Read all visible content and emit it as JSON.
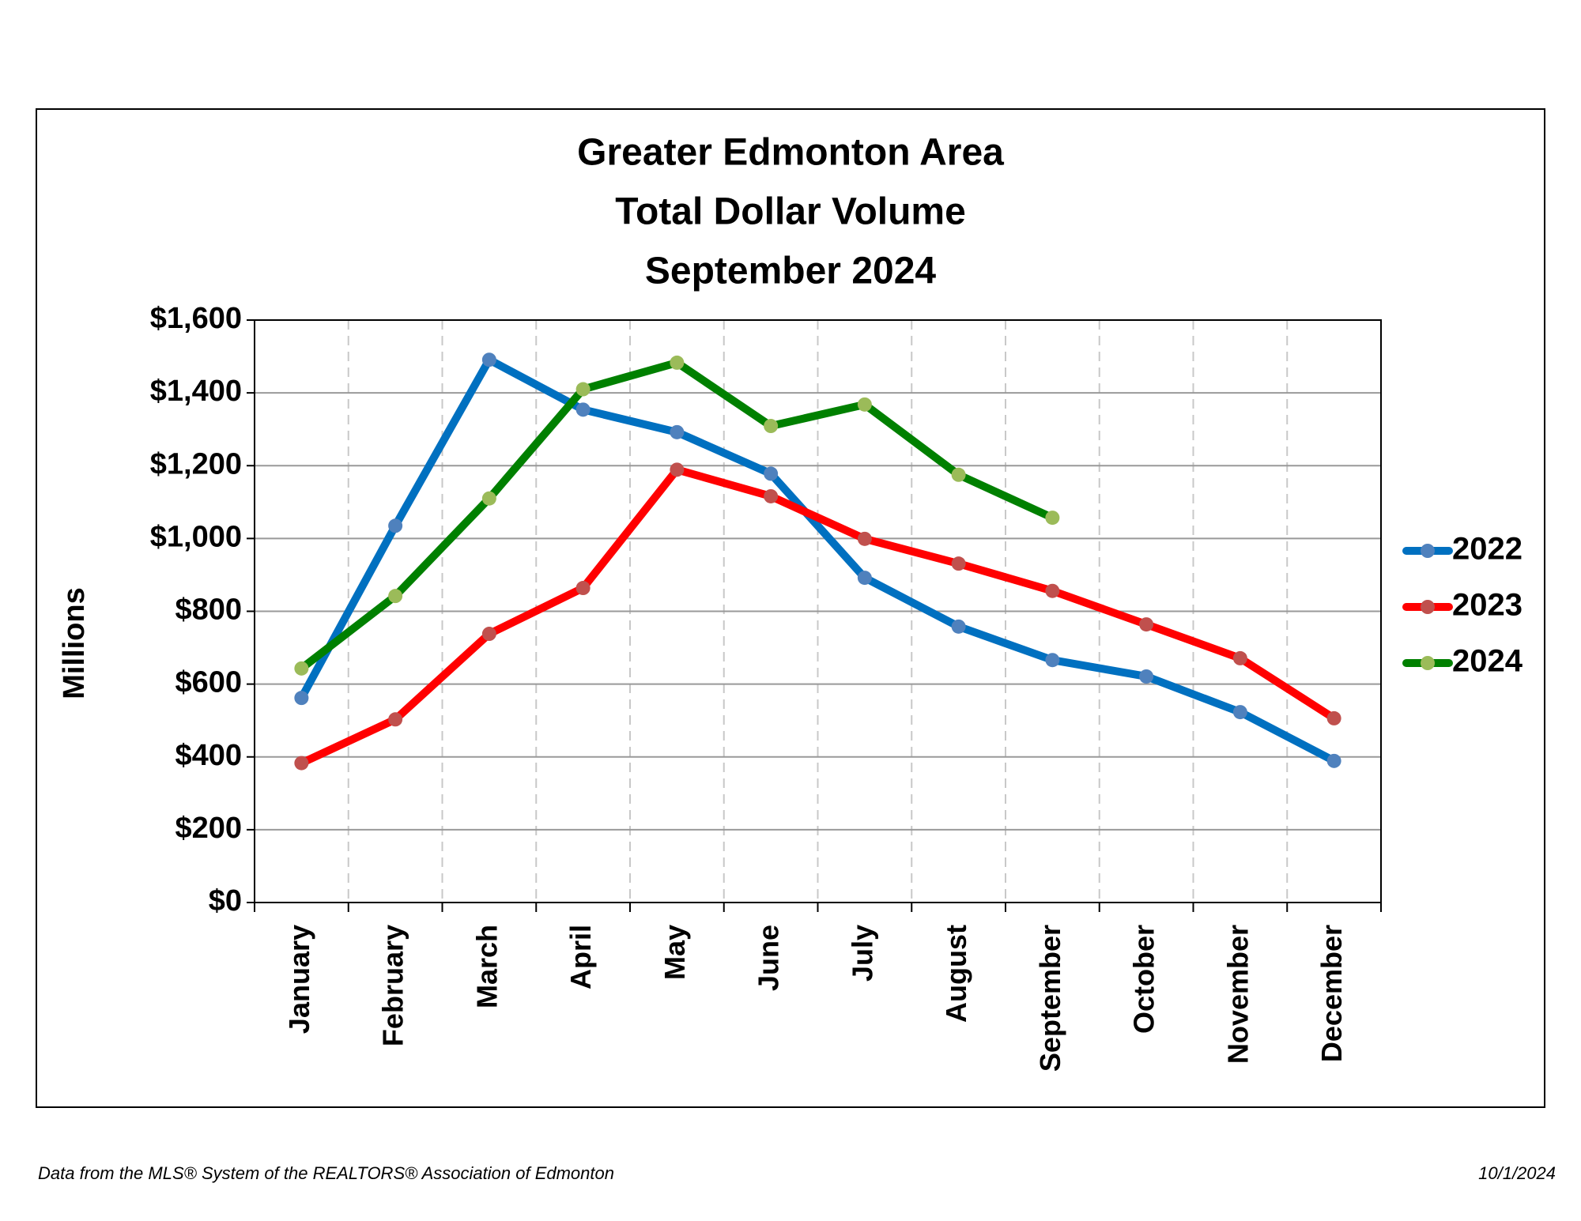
{
  "chart_data": {
    "type": "line",
    "title": [
      "Greater Edmonton Area",
      "Total Dollar Volume",
      "September 2024"
    ],
    "y_label": "Millions",
    "categories": [
      "January",
      "February",
      "March",
      "April",
      "May",
      "June",
      "July",
      "August",
      "September",
      "October",
      "November",
      "December"
    ],
    "series": [
      {
        "name": "2022",
        "color": "#0070c0",
        "marker_color": "#4f81bd",
        "values": [
          562,
          1035,
          1491,
          1354,
          1292,
          1178,
          892,
          758,
          666,
          621,
          523,
          389
        ]
      },
      {
        "name": "2023",
        "color": "#ff0000",
        "marker_color": "#c0504d",
        "values": [
          383,
          503,
          738,
          864,
          1189,
          1116,
          999,
          931,
          856,
          764,
          671,
          506
        ]
      },
      {
        "name": "2024",
        "color": "#008000",
        "marker_color": "#9bbb59",
        "values": [
          643,
          842,
          1110,
          1410,
          1483,
          1309,
          1368,
          1175,
          1057,
          null,
          null,
          null
        ]
      }
    ],
    "ylim": [
      0,
      1600
    ],
    "yticks": [
      {
        "value": 0,
        "label": "$0"
      },
      {
        "value": 200,
        "label": "$200"
      },
      {
        "value": 400,
        "label": "$400"
      },
      {
        "value": 600,
        "label": "$600"
      },
      {
        "value": 800,
        "label": "$800"
      },
      {
        "value": 1000,
        "label": "$1,000"
      },
      {
        "value": 1200,
        "label": "$1,200"
      },
      {
        "value": 1400,
        "label": "$1,400"
      },
      {
        "value": 1600,
        "label": "$1,600"
      }
    ],
    "grid": true,
    "legend": "right"
  },
  "footer": {
    "source": "Data from the MLS® System of the REALTORS® Association of Edmonton",
    "date": "10/1/2024"
  }
}
